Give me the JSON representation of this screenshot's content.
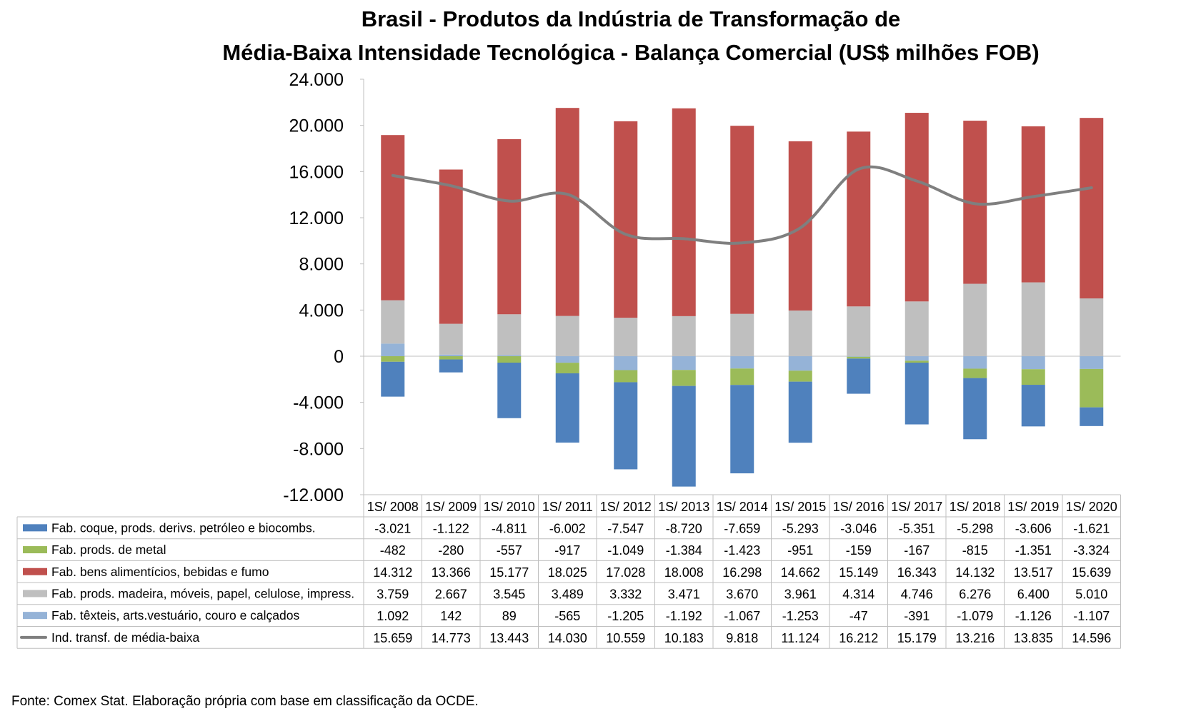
{
  "chart_data": {
    "type": "bar",
    "stacked": true,
    "title_lines": [
      "Brasil - Produtos da Indústria de Transformação de",
      "Média-Baixa Intensidade Tecnológica - Balança Comercial (US$ milhões FOB)"
    ],
    "source": "Fonte: Comex Stat. Elaboração própria com base em classificação da OCDE.",
    "categories": [
      "1S/ 2008",
      "1S/ 2009",
      "1S/ 2010",
      "1S/ 2011",
      "1S/ 2012",
      "1S/ 2013",
      "1S/ 2014",
      "1S/ 2015",
      "1S/ 2016",
      "1S/ 2017",
      "1S/ 2018",
      "1S/ 2019",
      "1S/ 2020"
    ],
    "ylim": [
      -12000,
      24000
    ],
    "yticks": [
      24000,
      20000,
      16000,
      12000,
      8000,
      4000,
      0,
      -4000,
      -8000,
      -12000
    ],
    "ytick_labels": [
      "24.000",
      "20.000",
      "16.000",
      "12.000",
      "8.000",
      "4.000",
      "0",
      "-4.000",
      "-8.000",
      "-12.000"
    ],
    "grid": false,
    "legend": "data-table",
    "series": [
      {
        "name": "Fab. coque, prods. derivs. petróleo e biocombs.",
        "kind": "bar",
        "color": "#4F81BD",
        "values": [
          -3021,
          -1122,
          -4811,
          -6002,
          -7547,
          -8720,
          -7659,
          -5293,
          -3046,
          -5351,
          -5298,
          -3606,
          -1621
        ],
        "labels": [
          "-3.021",
          "-1.122",
          "-4.811",
          "-6.002",
          "-7.547",
          "-8.720",
          "-7.659",
          "-5.293",
          "-3.046",
          "-5.351",
          "-5.298",
          "-3.606",
          "-1.621"
        ]
      },
      {
        "name": "Fab. prods. de metal",
        "kind": "bar",
        "color": "#9BBB59",
        "values": [
          -482,
          -280,
          -557,
          -917,
          -1049,
          -1384,
          -1423,
          -951,
          -159,
          -167,
          -815,
          -1351,
          -3324
        ],
        "labels": [
          "-482",
          "-280",
          "-557",
          "-917",
          "-1.049",
          "-1.384",
          "-1.423",
          "-951",
          "-159",
          "-167",
          "-815",
          "-1.351",
          "-3.324"
        ]
      },
      {
        "name": "Fab. bens alimentícios, bebidas e fumo",
        "kind": "bar",
        "color": "#C0504D",
        "values": [
          14312,
          13366,
          15177,
          18025,
          17028,
          18008,
          16298,
          14662,
          15149,
          16343,
          14132,
          13517,
          15639
        ],
        "labels": [
          "14.312",
          "13.366",
          "15.177",
          "18.025",
          "17.028",
          "18.008",
          "16.298",
          "14.662",
          "15.149",
          "16.343",
          "14.132",
          "13.517",
          "15.639"
        ]
      },
      {
        "name": "Fab. prods. madeira, móveis, papel, celulose, impress.",
        "kind": "bar",
        "color": "#BFBFBF",
        "values": [
          3759,
          2667,
          3545,
          3489,
          3332,
          3471,
          3670,
          3961,
          4314,
          4746,
          6276,
          6400,
          5010
        ],
        "labels": [
          "3.759",
          "2.667",
          "3.545",
          "3.489",
          "3.332",
          "3.471",
          "3.670",
          "3.961",
          "4.314",
          "4.746",
          "6.276",
          "6.400",
          "5.010"
        ]
      },
      {
        "name": "Fab. têxteis, arts.vestuário, couro e calçados",
        "kind": "bar",
        "color": "#95B3D7",
        "values": [
          1092,
          142,
          89,
          -565,
          -1205,
          -1192,
          -1067,
          -1253,
          -47,
          -391,
          -1079,
          -1126,
          -1107
        ],
        "labels": [
          "1.092",
          "142",
          "89",
          "-565",
          "-1.205",
          "-1.192",
          "-1.067",
          "-1.253",
          "-47",
          "-391",
          "-1.079",
          "-1.126",
          "-1.107"
        ]
      },
      {
        "name": "Ind. transf. de média-baixa",
        "kind": "line",
        "color": "#7F7F7F",
        "values": [
          15659,
          14773,
          13443,
          14030,
          10559,
          10183,
          9818,
          11124,
          16212,
          15179,
          13216,
          13835,
          14596
        ],
        "labels": [
          "15.659",
          "14.773",
          "13.443",
          "14.030",
          "10.559",
          "10.183",
          "9.818",
          "11.124",
          "16.212",
          "15.179",
          "13.216",
          "13.835",
          "14.596"
        ]
      }
    ],
    "stack_order_positive": [
      "Fab. têxteis, arts.vestuário, couro e calçados",
      "Fab. prods. madeira, móveis, papel, celulose, impress.",
      "Fab. bens alimentícios, bebidas e fumo"
    ],
    "stack_order_negative": [
      "Fab. têxteis, arts.vestuário, couro e calçados",
      "Fab. prods. de metal",
      "Fab. coque, prods. derivs. petróleo e biocombs."
    ]
  }
}
